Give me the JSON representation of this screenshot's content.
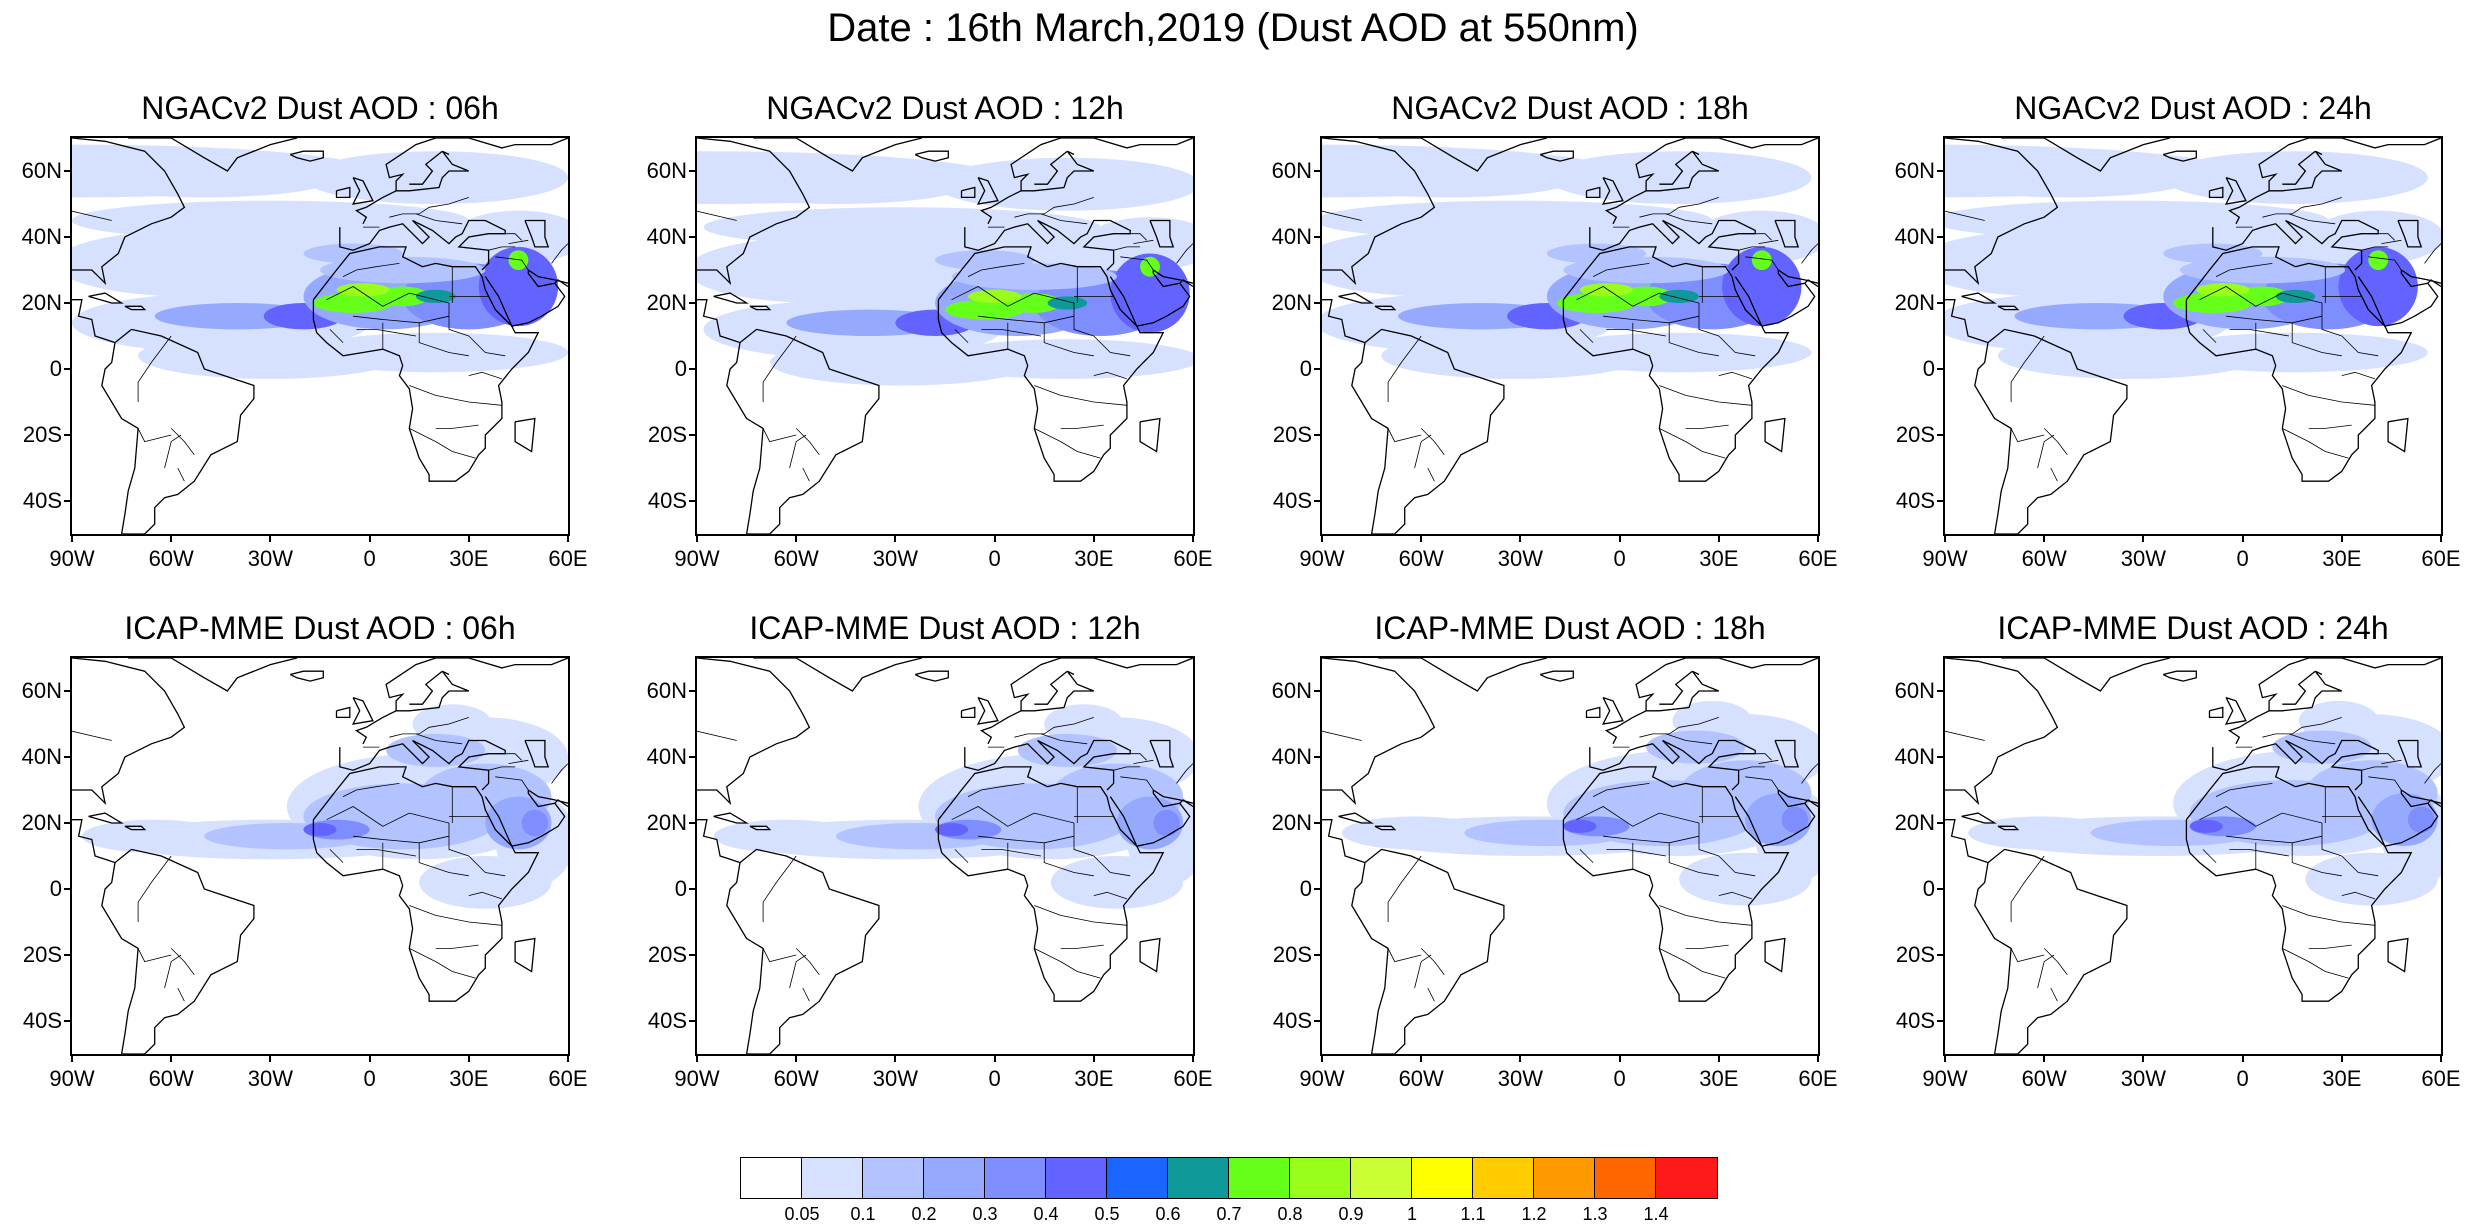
{
  "title": "Date : 16th March,2019 (Dust AOD at 550nm)",
  "panels": [
    {
      "title": "NGACv2 Dust AOD : 06h",
      "model": "ngac",
      "hour": 6
    },
    {
      "title": "NGACv2 Dust AOD : 12h",
      "model": "ngac",
      "hour": 12
    },
    {
      "title": "NGACv2 Dust AOD : 18h",
      "model": "ngac",
      "hour": 18
    },
    {
      "title": "NGACv2 Dust AOD : 24h",
      "model": "ngac",
      "hour": 24
    },
    {
      "title": "ICAP-MME Dust AOD : 06h",
      "model": "icap",
      "hour": 6
    },
    {
      "title": "ICAP-MME Dust AOD : 12h",
      "model": "icap",
      "hour": 12
    },
    {
      "title": "ICAP-MME Dust AOD : 18h",
      "model": "icap",
      "hour": 18
    },
    {
      "title": "ICAP-MME Dust AOD : 24h",
      "model": "icap",
      "hour": 24
    }
  ],
  "map": {
    "lon_range": [
      -90,
      60
    ],
    "lat_range": [
      -50,
      70
    ],
    "lat_ticks": [
      "60N",
      "40N",
      "20N",
      "0",
      "20S",
      "40S"
    ],
    "lon_ticks": [
      "90W",
      "60W",
      "30W",
      "0",
      "30E",
      "60E"
    ]
  },
  "legend": {
    "colors": [
      "#ffffff",
      "#d6e0ff",
      "#b3c3ff",
      "#95aaff",
      "#7e8eff",
      "#6363ff",
      "#1a66ff",
      "#0f9999",
      "#66ff1a",
      "#99ff1a",
      "#ccff33",
      "#ffff00",
      "#ffcc00",
      "#ff9900",
      "#ff6600",
      "#ff1a1a"
    ],
    "labels": [
      "0.05",
      "0.1",
      "0.2",
      "0.3",
      "0.4",
      "0.5",
      "0.6",
      "0.7",
      "0.8",
      "0.9",
      "1",
      "1.1",
      "1.2",
      "1.3",
      "1.4"
    ]
  }
}
